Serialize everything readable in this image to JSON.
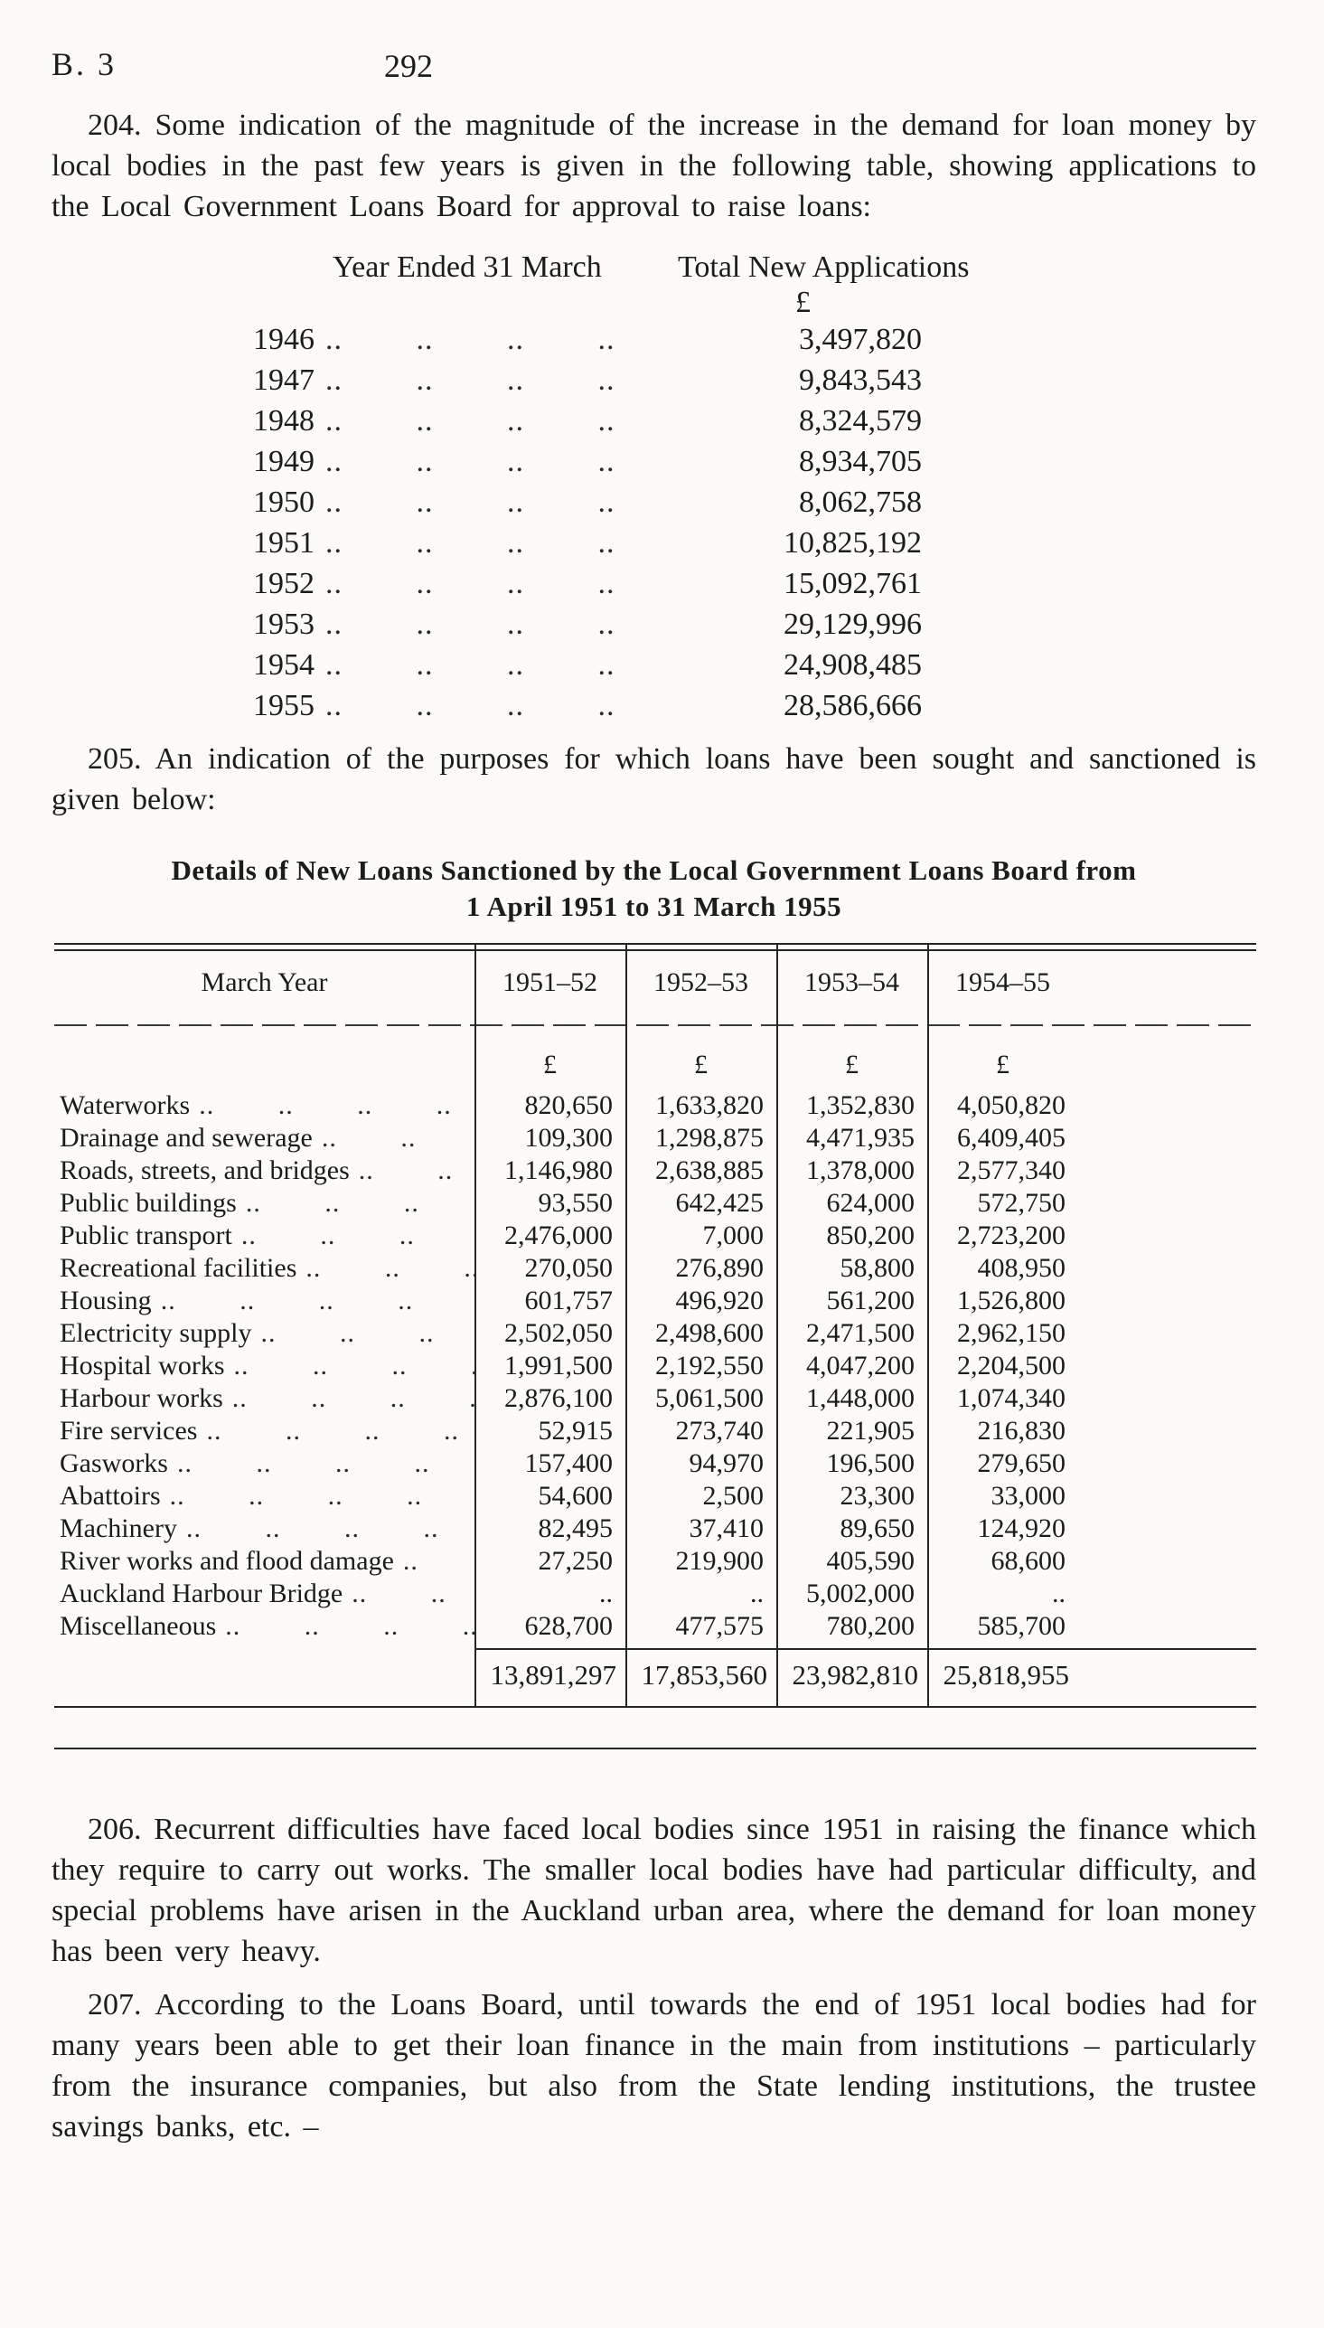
{
  "page": {
    "header_left": "B. 3",
    "page_number": "292"
  },
  "paragraphs": {
    "p204": "204. Some indication of the magnitude of the increase in the demand for loan money by local bodies in the past few years is given in the following table, showing applications to the Local Government Loans Board for approval to raise loans:",
    "p205": "205. An indication of the purposes for which loans have been sought and sanctioned is given below:",
    "p206": "206. Recurrent difficulties have faced local bodies since 1951 in raising the finance which they require to carry out works. The smaller local bodies have had particular difficulty, and special problems have arisen in the Auckland urban area, where the demand for loan money has been very heavy.",
    "p207": "207. According to the Loans Board, until towards the end of 1951 local bodies had for many years been able to get their loan finance in the main from institutions – particularly from the insurance companies, but also from the State lending institutions, the trustee savings banks, etc. –"
  },
  "applications_table": {
    "col1_header": "Year Ended 31 March",
    "col2_header": "Total New Applications",
    "currency_symbol": "£",
    "leader_display": ".. .. .. ..",
    "rows": [
      {
        "year": "1946",
        "amount": "3,497,820"
      },
      {
        "year": "1947",
        "amount": "9,843,543"
      },
      {
        "year": "1948",
        "amount": "8,324,579"
      },
      {
        "year": "1949",
        "amount": "8,934,705"
      },
      {
        "year": "1950",
        "amount": "8,062,758"
      },
      {
        "year": "1951",
        "amount": "10,825,192"
      },
      {
        "year": "1952",
        "amount": "15,092,761"
      },
      {
        "year": "1953",
        "amount": "29,129,996"
      },
      {
        "year": "1954",
        "amount": "24,908,485"
      },
      {
        "year": "1955",
        "amount": "28,586,666"
      }
    ]
  },
  "loans_table": {
    "title_line1": "Details of New Loans Sanctioned by the Local Government Loans Board from",
    "title_line2": "1 April 1951 to 31 March 1955",
    "row_header": "March Year",
    "columns": [
      "1951–52",
      "1952–53",
      "1953–54",
      "1954–55"
    ],
    "currency_symbol": "£",
    "leader_unit": "..",
    "rows": [
      {
        "label": "Waterworks",
        "values": [
          "820,650",
          "1,633,820",
          "1,352,830",
          "4,050,820"
        ]
      },
      {
        "label": "Drainage and sewerage",
        "values": [
          "109,300",
          "1,298,875",
          "4,471,935",
          "6,409,405"
        ]
      },
      {
        "label": "Roads, streets, and bridges",
        "values": [
          "1,146,980",
          "2,638,885",
          "1,378,000",
          "2,577,340"
        ]
      },
      {
        "label": "Public buildings",
        "values": [
          "93,550",
          "642,425",
          "624,000",
          "572,750"
        ]
      },
      {
        "label": "Public transport",
        "values": [
          "2,476,000",
          "7,000",
          "850,200",
          "2,723,200"
        ]
      },
      {
        "label": "Recreational facilities",
        "values": [
          "270,050",
          "276,890",
          "58,800",
          "408,950"
        ]
      },
      {
        "label": "Housing",
        "values": [
          "601,757",
          "496,920",
          "561,200",
          "1,526,800"
        ]
      },
      {
        "label": "Electricity supply",
        "values": [
          "2,502,050",
          "2,498,600",
          "2,471,500",
          "2,962,150"
        ]
      },
      {
        "label": "Hospital works",
        "values": [
          "1,991,500",
          "2,192,550",
          "4,047,200",
          "2,204,500"
        ]
      },
      {
        "label": "Harbour works",
        "values": [
          "2,876,100",
          "5,061,500",
          "1,448,000",
          "1,074,340"
        ]
      },
      {
        "label": "Fire services",
        "values": [
          "52,915",
          "273,740",
          "221,905",
          "216,830"
        ]
      },
      {
        "label": "Gasworks",
        "values": [
          "157,400",
          "94,970",
          "196,500",
          "279,650"
        ]
      },
      {
        "label": "Abattoirs",
        "values": [
          "54,600",
          "2,500",
          "23,300",
          "33,000"
        ]
      },
      {
        "label": "Machinery",
        "values": [
          "82,495",
          "37,410",
          "89,650",
          "124,920"
        ]
      },
      {
        "label": "River works and flood damage",
        "values": [
          "27,250",
          "219,900",
          "405,590",
          "68,600"
        ]
      },
      {
        "label": "Auckland Harbour Bridge",
        "values": [
          "..",
          "..",
          "5,002,000",
          ".."
        ]
      },
      {
        "label": "Miscellaneous",
        "values": [
          "628,700",
          "477,575",
          "780,200",
          "585,700"
        ]
      }
    ],
    "totals": [
      "13,891,297",
      "17,853,560",
      "23,982,810",
      "25,818,955"
    ]
  }
}
